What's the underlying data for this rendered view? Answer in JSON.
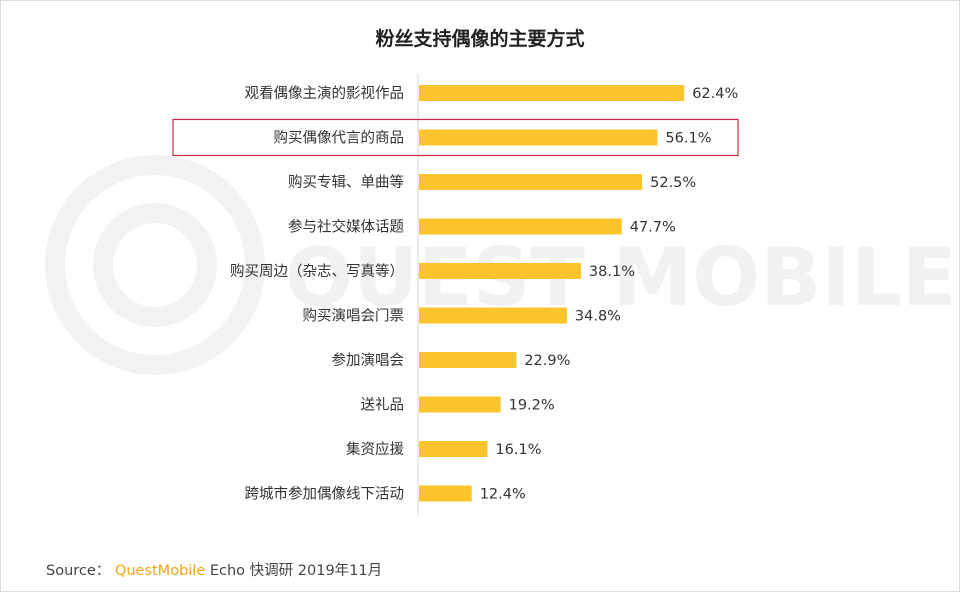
{
  "chart_data": {
    "type": "bar",
    "orientation": "horizontal",
    "title": "粉丝支持偶像的主要方式",
    "categories": [
      "观看偶像主演的影视作品",
      "购买偶像代言的商品",
      "购买专辑、单曲等",
      "参与社交媒体话题",
      "购买周边（杂志、写真等）",
      "购买演唱会门票",
      "参加演唱会",
      "送礼品",
      "集资应援",
      "跨城市参加偶像线下活动"
    ],
    "values": [
      62.4,
      56.1,
      52.5,
      47.7,
      38.1,
      34.8,
      22.9,
      19.2,
      16.1,
      12.4
    ],
    "value_labels": [
      "62.4%",
      "56.1%",
      "52.5%",
      "47.7%",
      "38.1%",
      "34.8%",
      "22.9%",
      "19.2%",
      "16.1%",
      "12.4%"
    ],
    "highlighted_index": 1,
    "xlim": [
      0,
      100
    ],
    "grid": false,
    "bar_color": "#fbc32c",
    "highlight_border_color": "#c8283c"
  },
  "footer": {
    "source_label": "Source：",
    "brand": "QuestMobile",
    "source_rest": "Echo 快调研 2019年11月"
  },
  "watermark": {
    "text": "QUEST MOBILE",
    "color": "#f1f1f1"
  }
}
